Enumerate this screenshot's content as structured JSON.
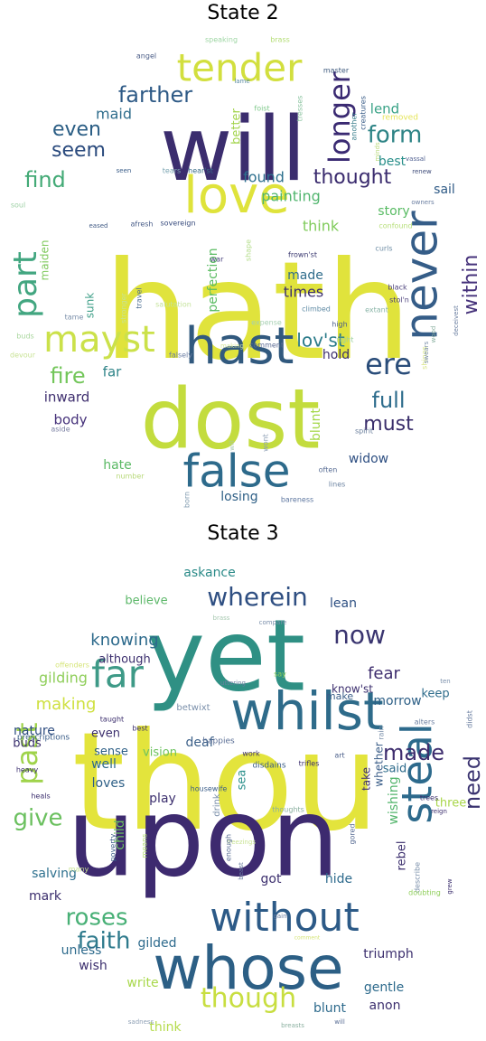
{
  "panels": [
    {
      "title": "State 2",
      "words": [
        {
          "text": "hath",
          "color": "#e0e33c"
        },
        {
          "text": "dost",
          "color": "#c3dc3e"
        },
        {
          "text": "will",
          "color": "#3b2d6e"
        },
        {
          "text": "love",
          "color": "#dfe33b"
        },
        {
          "text": "hast",
          "color": "#31597e"
        },
        {
          "text": "false",
          "color": "#2d6a8b"
        },
        {
          "text": "never",
          "color": "#355d88"
        },
        {
          "text": "tender",
          "color": "#d2df3e"
        },
        {
          "text": "mayst",
          "color": "#cbe14a"
        },
        {
          "text": "part",
          "color": "#42a680"
        },
        {
          "text": "ere",
          "color": "#2a4d7a"
        },
        {
          "text": "farther",
          "color": "#2e5a86"
        },
        {
          "text": "longer",
          "color": "#3a2a72"
        },
        {
          "text": "form",
          "color": "#2e8486"
        },
        {
          "text": "thought",
          "color": "#3a2b6e"
        },
        {
          "text": "find",
          "color": "#43aa76"
        },
        {
          "text": "even",
          "color": "#2a5d84"
        },
        {
          "text": "seem",
          "color": "#2a4a7d"
        },
        {
          "text": "fire",
          "color": "#73c65a"
        },
        {
          "text": "full",
          "color": "#2d6c8c"
        },
        {
          "text": "must",
          "color": "#3a2e6b"
        },
        {
          "text": "lov'st",
          "color": "#2b7b8a"
        },
        {
          "text": "within",
          "color": "#45317a"
        },
        {
          "text": "painting",
          "color": "#51b56e"
        },
        {
          "text": "found",
          "color": "#2d708e"
        },
        {
          "text": "maid",
          "color": "#2f6d8c"
        },
        {
          "text": "lend",
          "color": "#38a286"
        },
        {
          "text": "best",
          "color": "#2a8f8a"
        },
        {
          "text": "sail",
          "color": "#2e5a86"
        },
        {
          "text": "story",
          "color": "#58bb63"
        },
        {
          "text": "think",
          "color": "#7fcb5a"
        },
        {
          "text": "made",
          "color": "#2f6c8b"
        },
        {
          "text": "times",
          "color": "#3b2e6f"
        },
        {
          "text": "hold",
          "color": "#3e306d"
        },
        {
          "text": "far",
          "color": "#2f8488"
        },
        {
          "text": "inward",
          "color": "#3e2e6e"
        },
        {
          "text": "body",
          "color": "#45317a"
        },
        {
          "text": "blunt",
          "color": "#a5d84a"
        },
        {
          "text": "widow",
          "color": "#2e4f82"
        },
        {
          "text": "hate",
          "color": "#5ab964"
        },
        {
          "text": "losing",
          "color": "#2e5f86"
        },
        {
          "text": "perfection",
          "color": "#5bbc63"
        },
        {
          "text": "better",
          "color": "#a3d44c"
        },
        {
          "text": "maiden",
          "color": "#7fc95c"
        },
        {
          "text": "sunk",
          "color": "#3f9f88"
        },
        {
          "text": "removed",
          "color": "#e5e55a"
        },
        {
          "text": "creatures",
          "color": "#3a5d88"
        },
        {
          "text": "another",
          "color": "#3a7f8c"
        },
        {
          "text": "foist",
          "color": "#7fc98b"
        },
        {
          "text": "lame",
          "color": "#5a8ba3"
        },
        {
          "text": "master",
          "color": "#3e5a7e"
        },
        {
          "text": "angel",
          "color": "#4a5c86"
        },
        {
          "text": "speaking",
          "color": "#9fd6a4"
        },
        {
          "text": "brass",
          "color": "#b3dd74"
        },
        {
          "text": "tresses",
          "color": "#8bc4a0"
        },
        {
          "text": "minds",
          "color": "#b8d97a"
        },
        {
          "text": "vassal",
          "color": "#4f5f90"
        },
        {
          "text": "renew",
          "color": "#3d4a78"
        },
        {
          "text": "owners",
          "color": "#6a7ea0"
        },
        {
          "text": "confound",
          "color": "#b7df7a"
        },
        {
          "text": "seen",
          "color": "#3a5d88"
        },
        {
          "text": "tears",
          "color": "#7da6b3"
        },
        {
          "text": "hear'st",
          "color": "#3a6d88"
        },
        {
          "text": "soul",
          "color": "#9dd0a4"
        },
        {
          "text": "eased",
          "color": "#435c86"
        },
        {
          "text": "afresh",
          "color": "#4b5f8a"
        },
        {
          "text": "sovereign",
          "color": "#3a4d7e"
        },
        {
          "text": "war",
          "color": "#4d4780"
        },
        {
          "text": "frown'st",
          "color": "#3b3970"
        },
        {
          "text": "shape",
          "color": "#b4dd8a"
        },
        {
          "text": "salutation",
          "color": "#c4e39a"
        },
        {
          "text": "curls",
          "color": "#6f8ea6"
        },
        {
          "text": "stol'n",
          "color": "#4a3f7a"
        },
        {
          "text": "black",
          "color": "#4a3f7a"
        },
        {
          "text": "climbed",
          "color": "#5f8aa4"
        },
        {
          "text": "extant",
          "color": "#8ab5a8"
        },
        {
          "text": "buds",
          "color": "#a8d69c"
        },
        {
          "text": "stronger",
          "color": "#c8e391"
        },
        {
          "text": "travel",
          "color": "#4a6b90"
        },
        {
          "text": "tame",
          "color": "#7a8faa"
        },
        {
          "text": "devour",
          "color": "#c9e395"
        },
        {
          "text": "expense",
          "color": "#a6d0b2"
        },
        {
          "text": "high",
          "color": "#4b5f8a"
        },
        {
          "text": "right",
          "color": "#9ed09f"
        },
        {
          "text": "falsely",
          "color": "#6c7ea3"
        },
        {
          "text": "making",
          "color": "#d6e59b"
        },
        {
          "text": "comment",
          "color": "#5e6d95"
        },
        {
          "text": "shines",
          "color": "#d9e68a"
        },
        {
          "text": "aside",
          "color": "#7a7fa2"
        },
        {
          "text": "spirit",
          "color": "#6a7f9c"
        },
        {
          "text": "often",
          "color": "#5a6e95"
        },
        {
          "text": "lines",
          "color": "#6f86a3"
        },
        {
          "text": "bareness",
          "color": "#5e77a0"
        },
        {
          "text": "born",
          "color": "#7f9aae"
        },
        {
          "text": "number",
          "color": "#b8d97a"
        },
        {
          "text": "will",
          "color": "#a6c8b0"
        },
        {
          "text": "wont",
          "color": "#8d9fb4"
        },
        {
          "text": "deceivest",
          "color": "#6a7ea0"
        },
        {
          "text": "swears",
          "color": "#7a8faa"
        },
        {
          "text": "wood",
          "color": "#8ab0a0"
        }
      ]
    },
    {
      "title": "State 3",
      "words": [
        {
          "text": "thou",
          "color": "#e3e43c"
        },
        {
          "text": "upon",
          "color": "#3d2a6f"
        },
        {
          "text": "yet",
          "color": "#2f9084"
        },
        {
          "text": "whose",
          "color": "#2c5f85"
        },
        {
          "text": "whilst",
          "color": "#2e6b8a"
        },
        {
          "text": "without",
          "color": "#2c5a87"
        },
        {
          "text": "steal",
          "color": "#2d6a8c"
        },
        {
          "text": "wherein",
          "color": "#2f4f82"
        },
        {
          "text": "far",
          "color": "#3e9a87"
        },
        {
          "text": "now",
          "color": "#3a3570"
        },
        {
          "text": "though",
          "color": "#c8de40"
        },
        {
          "text": "past",
          "color": "#9fd34a"
        },
        {
          "text": "give",
          "color": "#6bc05f"
        },
        {
          "text": "faith",
          "color": "#2e7a8c"
        },
        {
          "text": "roses",
          "color": "#48b076"
        },
        {
          "text": "made",
          "color": "#3e2d6e"
        },
        {
          "text": "need",
          "color": "#3a3370"
        },
        {
          "text": "fear",
          "color": "#3e2d6e"
        },
        {
          "text": "knowing",
          "color": "#2d6a8c"
        },
        {
          "text": "making",
          "color": "#cfe040"
        },
        {
          "text": "gilding",
          "color": "#8fce5a"
        },
        {
          "text": "believe",
          "color": "#5db86a"
        },
        {
          "text": "askance",
          "color": "#2a8a88"
        },
        {
          "text": "lean",
          "color": "#2d4f82"
        },
        {
          "text": "morrow",
          "color": "#2d5f86"
        },
        {
          "text": "know'st",
          "color": "#3c2f6e"
        },
        {
          "text": "although",
          "color": "#3c2f6e"
        },
        {
          "text": "keep",
          "color": "#2f6d8c"
        },
        {
          "text": "said",
          "color": "#2c6a8a"
        },
        {
          "text": "nature",
          "color": "#2d4c7f"
        },
        {
          "text": "buds",
          "color": "#3c2f6e"
        },
        {
          "text": "even",
          "color": "#3c2f6e"
        },
        {
          "text": "sense",
          "color": "#2d5f86"
        },
        {
          "text": "vision",
          "color": "#6cc25f"
        },
        {
          "text": "deaf",
          "color": "#3b5f88"
        },
        {
          "text": "well",
          "color": "#2d6a8c"
        },
        {
          "text": "loves",
          "color": "#2d5f86"
        },
        {
          "text": "play",
          "color": "#3c2f6e"
        },
        {
          "text": "sea",
          "color": "#2a8f8a"
        },
        {
          "text": "take",
          "color": "#3c2f6e"
        },
        {
          "text": "whether",
          "color": "#3a5d88"
        },
        {
          "text": "wishing",
          "color": "#52b46b"
        },
        {
          "text": "three",
          "color": "#a9d64a"
        },
        {
          "text": "salving",
          "color": "#2d708e"
        },
        {
          "text": "mark",
          "color": "#3c2f6e"
        },
        {
          "text": "unless",
          "color": "#2d6a8c"
        },
        {
          "text": "gilded",
          "color": "#2d6a8c"
        },
        {
          "text": "got",
          "color": "#3c2f6e"
        },
        {
          "text": "hide",
          "color": "#2d6a8c"
        },
        {
          "text": "rebel",
          "color": "#3c2f6e"
        },
        {
          "text": "triumph",
          "color": "#3c2f6e"
        },
        {
          "text": "gentle",
          "color": "#2d6a8c"
        },
        {
          "text": "anon",
          "color": "#3c2f6e"
        },
        {
          "text": "wish",
          "color": "#3c2f6e"
        },
        {
          "text": "think",
          "color": "#b5db4c"
        },
        {
          "text": "write",
          "color": "#a8d84a"
        },
        {
          "text": "blunt",
          "color": "#2d6a8c"
        },
        {
          "text": "child",
          "color": "#6cc25f"
        },
        {
          "text": "disdains",
          "color": "#3a5d88"
        },
        {
          "text": "drink",
          "color": "#7a8faa"
        },
        {
          "text": "prescriptions",
          "color": "#3a5d88"
        },
        {
          "text": "taught",
          "color": "#3c2f6e"
        },
        {
          "text": "betwixt",
          "color": "#7a8faa"
        },
        {
          "text": "best",
          "color": "#3c2f6e"
        },
        {
          "text": "happies",
          "color": "#5a6e95"
        },
        {
          "text": "make",
          "color": "#3a5d88"
        },
        {
          "text": "say",
          "color": "#8fce5a"
        },
        {
          "text": "offenders",
          "color": "#d6e57a"
        },
        {
          "text": "work",
          "color": "#3c2f6e"
        },
        {
          "text": "trifles",
          "color": "#3c2f6e"
        },
        {
          "text": "art",
          "color": "#4b5f8a"
        },
        {
          "text": "rain",
          "color": "#7a8faa"
        },
        {
          "text": "alters",
          "color": "#6a7ea0"
        },
        {
          "text": "housewife",
          "color": "#3a5d88"
        },
        {
          "text": "heals",
          "color": "#3c2f6e"
        },
        {
          "text": "heavy",
          "color": "#3c2f6e"
        },
        {
          "text": "trees",
          "color": "#3c2f6e"
        },
        {
          "text": "reign",
          "color": "#3c2f6e"
        },
        {
          "text": "didst",
          "color": "#6a7ea0"
        },
        {
          "text": "thoughts",
          "color": "#8bb0a0"
        },
        {
          "text": "freezings",
          "color": "#c9e395"
        },
        {
          "text": "means",
          "color": "#b3dd74"
        },
        {
          "text": "enough",
          "color": "#5a6e95"
        },
        {
          "text": "gored",
          "color": "#5a6e95"
        },
        {
          "text": "describe",
          "color": "#7a8faa"
        },
        {
          "text": "doubting",
          "color": "#8fce5a"
        },
        {
          "text": "poverty",
          "color": "#3a5d88"
        },
        {
          "text": "many",
          "color": "#c9e395"
        },
        {
          "text": "gain",
          "color": "#6a7ea0"
        },
        {
          "text": "beast",
          "color": "#6a7ea0"
        },
        {
          "text": "comment",
          "color": "#d6e57a"
        },
        {
          "text": "sadness",
          "color": "#8d9fb4"
        },
        {
          "text": "breasts",
          "color": "#8bb0a0"
        },
        {
          "text": "will",
          "color": "#5a6e95"
        },
        {
          "text": "grew",
          "color": "#3c2f6e"
        },
        {
          "text": "brass",
          "color": "#a6c8b0"
        },
        {
          "text": "compare",
          "color": "#7a8faa"
        },
        {
          "text": "uttering",
          "color": "#6a7ea0"
        },
        {
          "text": "ten",
          "color": "#7a8faa"
        },
        {
          "text": "tis",
          "color": "#6a7ea0"
        }
      ]
    }
  ]
}
